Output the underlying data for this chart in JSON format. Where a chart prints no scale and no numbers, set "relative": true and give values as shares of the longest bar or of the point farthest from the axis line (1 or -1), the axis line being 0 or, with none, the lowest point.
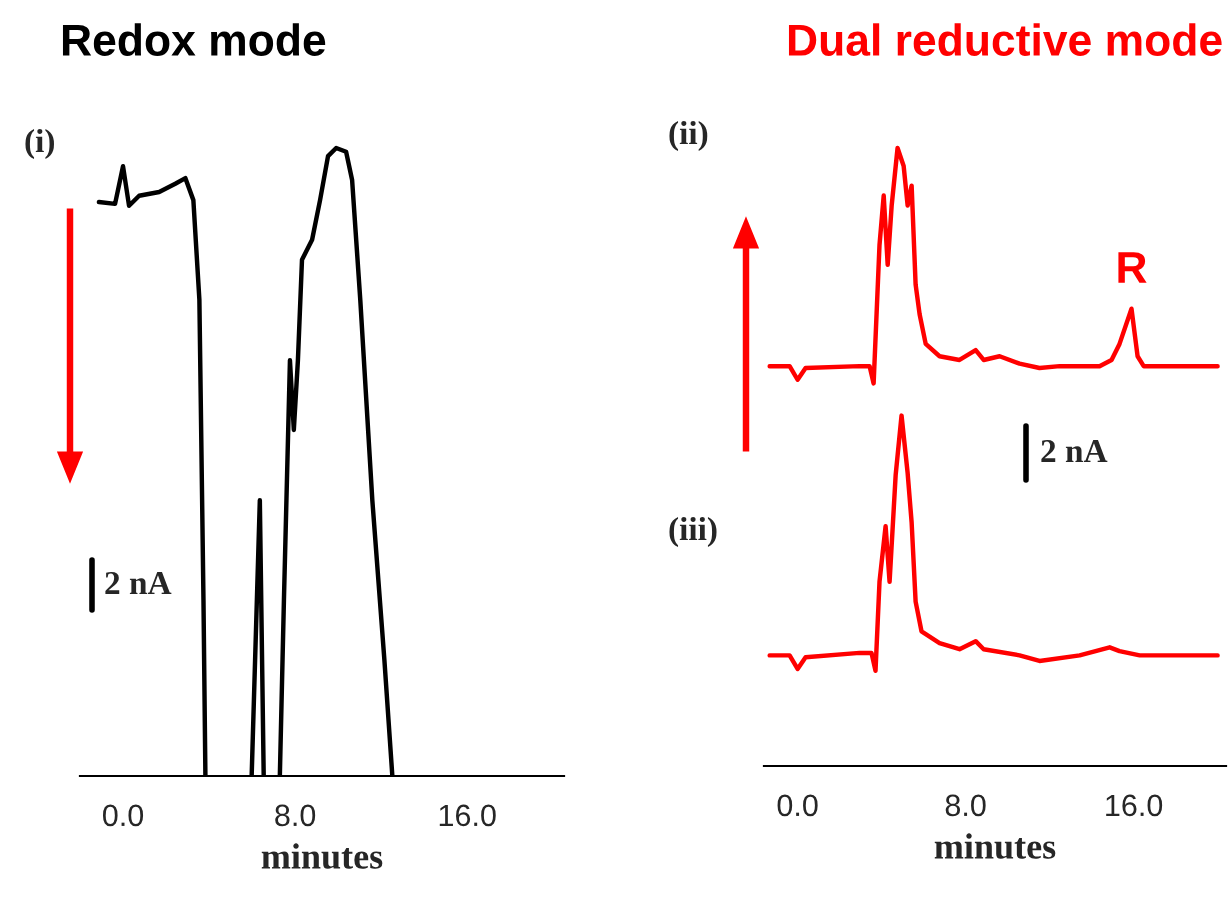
{
  "chart_data": [
    {
      "type": "line",
      "title": "Redox mode",
      "xlabel": "minutes",
      "relative": true,
      "xlim": [
        -2,
        20.5
      ],
      "xticks": [
        {
          "value": 0,
          "label": "0.0"
        },
        {
          "value": 8,
          "label": "8.0"
        },
        {
          "value": 16,
          "label": "16.0"
        }
      ],
      "grid": false,
      "legend": false,
      "marker": "none",
      "line_style": "solid",
      "annotations": [
        "(i)",
        "2 nA"
      ],
      "series": [
        {
          "color": "#000000",
          "x": [
            -1.12,
            -0.37,
            0.0,
            0.28,
            0.75,
            1.68,
            2.43,
            2.9,
            3.27,
            3.55,
            3.74,
            3.83,
            5.0,
            5.98,
            6.36,
            6.54,
            7.0,
            7.29,
            7.48,
            7.76,
            7.94,
            8.13,
            8.32,
            8.79,
            9.16,
            9.53,
            9.91,
            10.37,
            10.65,
            11.03,
            11.59,
            12.15,
            12.52
          ],
          "values": [
            0.914,
            0.911,
            0.971,
            0.908,
            0.924,
            0.93,
            0.943,
            0.952,
            0.917,
            0.758,
            0.28,
            0,
            null,
            0,
            0.439,
            0,
            null,
            0,
            0.28,
            0.662,
            0.551,
            0.662,
            0.822,
            0.854,
            0.917,
            0.987,
            1,
            0.994,
            0.949,
            0.758,
            0.439,
            0.185,
            0
          ]
        }
      ]
    },
    {
      "type": "line",
      "title": "Dual reductive mode",
      "xlabel": "minutes",
      "relative": true,
      "xlim": [
        -1.6,
        20.4
      ],
      "xticks": [
        {
          "value": 0,
          "label": "0.0"
        },
        {
          "value": 8,
          "label": "8.0"
        },
        {
          "value": 16,
          "label": "16.0"
        }
      ],
      "grid": false,
      "legend": false,
      "marker": "none",
      "line_style": "solid",
      "annotations": [
        "(ii)",
        "(iii)",
        "2 nA",
        {
          "text": "R",
          "x": 15.9,
          "y": 0.74
        }
      ],
      "series": [
        {
          "color": "#ff0000",
          "x": [
            -1.33,
            -0.38,
            0,
            0.38,
            2.95,
            3.43,
            3.62,
            3.9,
            4.1,
            4.29,
            4.48,
            4.76,
            5.05,
            5.24,
            5.43,
            5.62,
            5.81,
            6.1,
            6.76,
            7.71,
            8.48,
            8.86,
            9.62,
            10.57,
            11.52,
            12.48,
            14.38,
            14.95,
            15.33,
            15.9,
            16.19,
            16.48,
            20.0
          ],
          "values": [
            0.647,
            0.647,
            0.625,
            0.644,
            0.647,
            0.647,
            0.619,
            0.843,
            0.923,
            0.811,
            0.907,
            1.0,
            0.971,
            0.907,
            0.939,
            0.779,
            0.731,
            0.683,
            0.663,
            0.657,
            0.673,
            0.657,
            0.663,
            0.651,
            0.644,
            0.647,
            0.647,
            0.657,
            0.683,
            0.74,
            0.663,
            0.647,
            0.647
          ]
        },
        {
          "color": "#ff0000",
          "x": [
            -1.33,
            -0.38,
            0,
            0.38,
            2.95,
            3.52,
            3.71,
            3.9,
            4.19,
            4.38,
            4.67,
            4.95,
            5.24,
            5.43,
            5.62,
            5.9,
            6.76,
            7.71,
            8.48,
            8.86,
            10.57,
            11.52,
            13.43,
            14.86,
            15.33,
            16.29,
            20.0
          ],
          "values": [
            0.179,
            0.179,
            0.157,
            0.176,
            0.183,
            0.183,
            0.154,
            0.298,
            0.388,
            0.298,
            0.471,
            0.567,
            0.474,
            0.394,
            0.266,
            0.218,
            0.199,
            0.189,
            0.202,
            0.189,
            0.179,
            0.17,
            0.179,
            0.192,
            0.186,
            0.179,
            0.179
          ]
        }
      ]
    }
  ]
}
